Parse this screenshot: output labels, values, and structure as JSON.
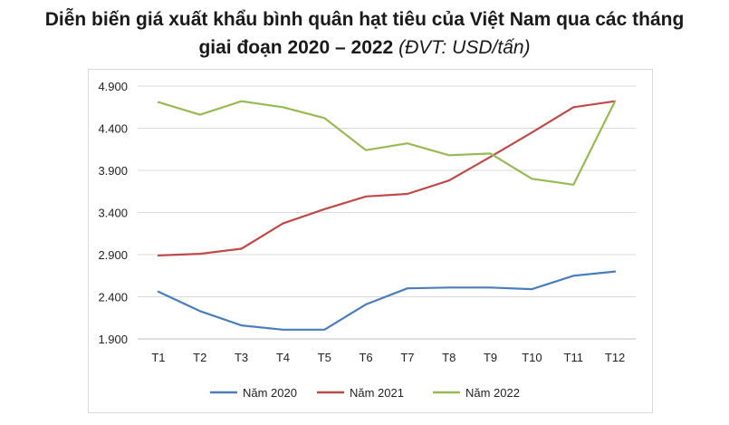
{
  "title": {
    "line1": "Diễn biến giá xuất khẩu bình quân hạt tiêu của Việt Nam qua các tháng",
    "line2_main": "giai đoạn 2020 – 2022",
    "line2_unit": "(ĐVT: USD/tấn)"
  },
  "chart_data": {
    "type": "line",
    "categories": [
      "T1",
      "T2",
      "T3",
      "T4",
      "T5",
      "T6",
      "T7",
      "T8",
      "T9",
      "T10",
      "T11",
      "T12"
    ],
    "y_ticks": [
      "1.900",
      "2.400",
      "2.900",
      "3.400",
      "3.900",
      "4.400",
      "4.900"
    ],
    "ylim": [
      1900,
      4900
    ],
    "grid": true,
    "legend_position": "bottom",
    "series": [
      {
        "name": "Năm 2020",
        "color": "#4a7ebb",
        "values": [
          2460,
          2230,
          2060,
          2010,
          2010,
          2310,
          2500,
          2510,
          2510,
          2490,
          2650,
          2700
        ]
      },
      {
        "name": "Năm 2021",
        "color": "#be4b48",
        "values": [
          2890,
          2910,
          2970,
          3270,
          3440,
          3590,
          3620,
          3780,
          4060,
          4350,
          4650,
          4720
        ]
      },
      {
        "name": "Năm 2022",
        "color": "#98b954",
        "values": [
          4710,
          4560,
          4720,
          4650,
          4520,
          4140,
          4220,
          4080,
          4100,
          3800,
          3730,
          4720
        ]
      }
    ]
  }
}
